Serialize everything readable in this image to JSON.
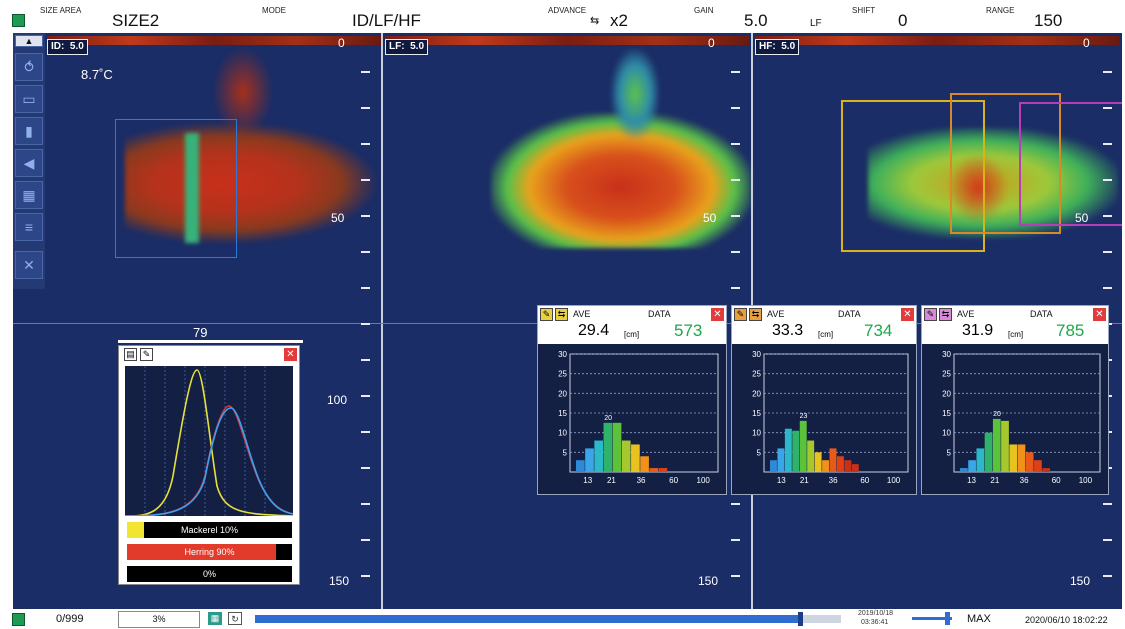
{
  "header": {
    "size_area": {
      "label": "SIZE AREA",
      "value": "SIZE2"
    },
    "mode": {
      "label": "MODE",
      "value": "ID/LF/HF"
    },
    "advance": {
      "label": "ADVANCE",
      "value": "x2",
      "icon": "advance-icon"
    },
    "gain": {
      "label": "GAIN",
      "value": "5.0",
      "sub": "LF"
    },
    "shift": {
      "label": "SHIFT",
      "value": "0"
    },
    "range": {
      "label": "RANGE",
      "value": "150"
    }
  },
  "colors": {
    "screen": "#1b2d66",
    "grid_line": "#1fb53a",
    "box_blue": "#2d7ad6",
    "box_yellow": "#d8b41a",
    "box_orange": "#d98a28",
    "box_magenta": "#b93db8"
  },
  "panes": [
    {
      "tag": "ID:",
      "gain": "5.0",
      "depth0": "0",
      "depth50": "50",
      "depth100": "100",
      "depth150": "150"
    },
    {
      "tag": "LF:",
      "gain": "5.0",
      "depth0": "0",
      "depth50": "50",
      "depth100": "",
      "depth150": "150"
    },
    {
      "tag": "HF:",
      "gain": "5.0",
      "depth0": "0",
      "depth50": "50",
      "depth100": "",
      "depth150": "150"
    }
  ],
  "temperature": "8.7˚C",
  "cursor_depth": "79",
  "sidebar": {
    "icons": [
      "up-arrow-icon",
      "fish-icon",
      "echogram-icon",
      "bar-chart-icon",
      "speaker-icon",
      "histogram-icon",
      "layers-icon",
      "tools-icon"
    ]
  },
  "histograms": [
    {
      "ave_label": "AVE",
      "data_label": "DATA",
      "ave": "29.4",
      "unit": "[cm]",
      "count": "573",
      "peak_label": "20",
      "y_ticks": [
        "30",
        "25",
        "20",
        "15",
        "10",
        "5"
      ],
      "x_ticks": [
        "13",
        "21",
        "36",
        "60",
        "100"
      ],
      "bars": [
        3,
        6,
        8,
        12.5,
        12.5,
        8,
        7,
        4,
        1,
        1
      ],
      "box_color": "#2d7ad6"
    },
    {
      "ave_label": "AVE",
      "data_label": "DATA",
      "ave": "33.3",
      "unit": "[cm]",
      "count": "734",
      "peak_label": "23",
      "y_ticks": [
        "30",
        "25",
        "20",
        "15",
        "10",
        "5"
      ],
      "x_ticks": [
        "13",
        "21",
        "36",
        "60",
        "100"
      ],
      "bars": [
        3,
        6,
        11,
        10.5,
        13,
        8,
        5,
        3,
        6,
        4,
        3,
        2
      ],
      "box_color": "#d98a28"
    },
    {
      "ave_label": "AVE",
      "data_label": "DATA",
      "ave": "31.9",
      "unit": "[cm]",
      "count": "785",
      "peak_label": "20",
      "y_ticks": [
        "30",
        "25",
        "20",
        "15",
        "10",
        "5"
      ],
      "x_ticks": [
        "13",
        "21",
        "36",
        "60",
        "100"
      ],
      "bars": [
        1,
        3,
        6,
        10,
        13.5,
        13,
        7,
        7,
        5,
        3,
        1
      ],
      "box_color": "#b93db8"
    }
  ],
  "species": {
    "rows": [
      {
        "label": "Mackerel  10%",
        "fraction": 0.1,
        "color": "#f2e531"
      },
      {
        "label": "Herring  90%",
        "fraction": 0.9,
        "color": "#e23b2b"
      },
      {
        "label": "0%",
        "fraction": 0.0,
        "color": "#000000"
      }
    ]
  },
  "footer": {
    "counter": "0/999",
    "percent": "3%",
    "date_small": "2019/10/18",
    "time_small": "03:36:41",
    "max_label": "MAX",
    "datetime": "2020/06/10 18:02:22",
    "progress": 0.93
  }
}
